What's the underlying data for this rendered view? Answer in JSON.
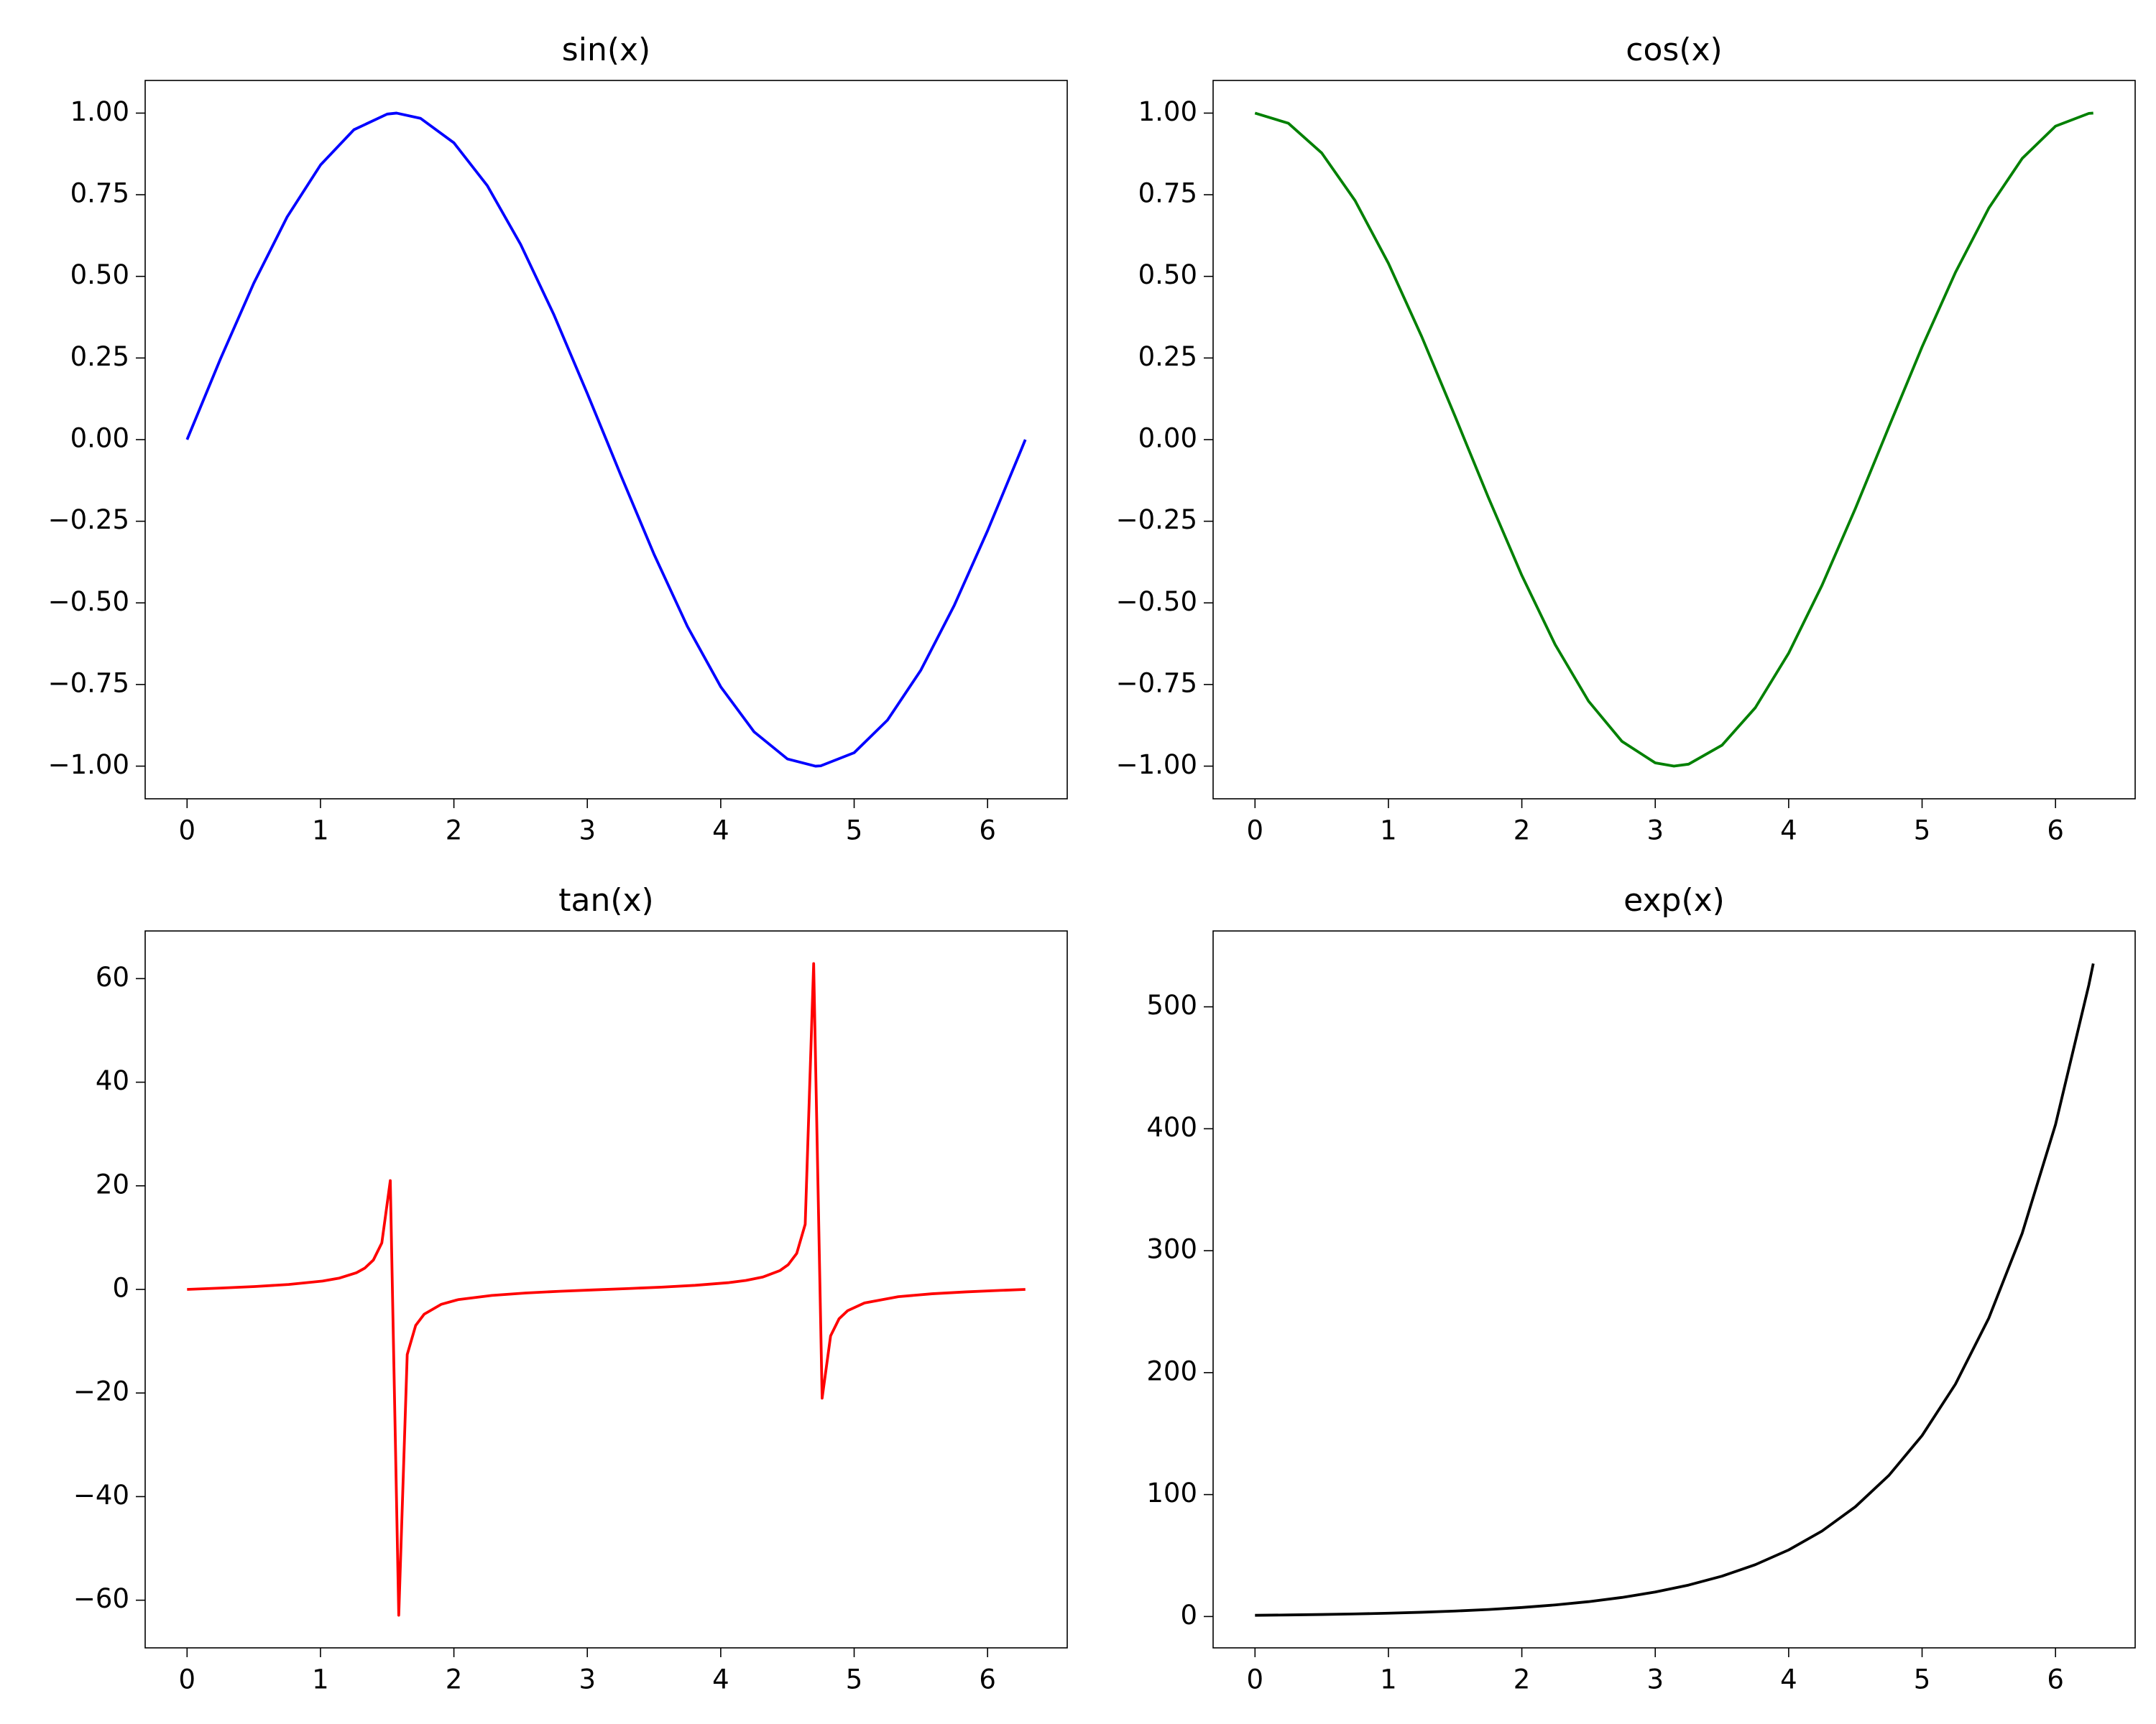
{
  "chart_data": [
    {
      "type": "line",
      "title": "sin(x)",
      "color": "#0000ff",
      "x": [
        0,
        0.25,
        0.5,
        0.75,
        1,
        1.25,
        1.5,
        1.57,
        1.75,
        2,
        2.25,
        2.5,
        2.75,
        3,
        3.14,
        3.25,
        3.5,
        3.75,
        4,
        4.25,
        4.5,
        4.71,
        4.75,
        5,
        5.25,
        5.5,
        5.75,
        6,
        6.25,
        6.283
      ],
      "values": [
        0,
        0.247,
        0.479,
        0.682,
        0.841,
        0.949,
        0.997,
        1.0,
        0.984,
        0.909,
        0.778,
        0.598,
        0.382,
        0.141,
        0.002,
        -0.108,
        -0.351,
        -0.572,
        -0.757,
        -0.895,
        -0.978,
        -1.0,
        -0.999,
        -0.959,
        -0.859,
        -0.706,
        -0.508,
        -0.279,
        -0.033,
        0
      ],
      "xlim": [
        -0.314,
        6.597
      ],
      "ylim": [
        -1.1,
        1.1
      ],
      "xticks": [
        0,
        1,
        2,
        3,
        4,
        5,
        6
      ],
      "yticks": [
        {
          "value": -1,
          "label": "−1.00"
        },
        {
          "value": -0.75,
          "label": "−0.75"
        },
        {
          "value": -0.5,
          "label": "−0.50"
        },
        {
          "value": -0.25,
          "label": "−0.25"
        },
        {
          "value": 0,
          "label": "0.00"
        },
        0.25,
        {
          "value": 0.5,
          "label": "0.50"
        },
        0.75,
        {
          "value": 1,
          "label": "1.00"
        }
      ]
    },
    {
      "type": "line",
      "title": "cos(x)",
      "color": "#008000",
      "x": [
        0,
        0.25,
        0.5,
        0.75,
        1,
        1.25,
        1.5,
        1.57,
        1.75,
        2,
        2.25,
        2.5,
        2.75,
        3,
        3.14,
        3.25,
        3.5,
        3.75,
        4,
        4.25,
        4.5,
        4.71,
        4.75,
        5,
        5.25,
        5.5,
        5.75,
        6,
        6.25,
        6.283
      ],
      "values": [
        1,
        0.969,
        0.878,
        0.732,
        0.54,
        0.315,
        0.071,
        0.001,
        -0.178,
        -0.416,
        -0.628,
        -0.801,
        -0.924,
        -0.99,
        -1.0,
        -0.994,
        -0.936,
        -0.821,
        -0.654,
        -0.446,
        -0.211,
        -0.002,
        0.038,
        0.284,
        0.512,
        0.709,
        0.861,
        0.96,
        0.999,
        1
      ],
      "xlim": [
        -0.314,
        6.597
      ],
      "ylim": [
        -1.1,
        1.1
      ],
      "xticks": [
        0,
        1,
        2,
        3,
        4,
        5,
        6
      ],
      "yticks": [
        {
          "value": -1,
          "label": "−1.00"
        },
        {
          "value": -0.75,
          "label": "−0.75"
        },
        {
          "value": -0.5,
          "label": "−0.50"
        },
        {
          "value": -0.25,
          "label": "−0.25"
        },
        {
          "value": 0,
          "label": "0.00"
        },
        0.25,
        {
          "value": 0.5,
          "label": "0.50"
        },
        0.75,
        {
          "value": 1,
          "label": "1.00"
        }
      ]
    },
    {
      "type": "line",
      "title": "tan(x)",
      "color": "#ff0000",
      "x": [
        0,
        0.2539,
        0.5077,
        0.7616,
        1.0155,
        1.1424,
        1.2693,
        1.3328,
        1.3963,
        1.4597,
        1.5232,
        1.5867,
        1.6501,
        1.7136,
        1.7771,
        1.904,
        2.0309,
        2.2848,
        2.5387,
        2.7925,
        3.0464,
        3.3003,
        3.5541,
        3.808,
        4.0619,
        4.1888,
        4.3158,
        4.4427,
        4.5061,
        4.5696,
        4.6331,
        4.6965,
        4.76,
        4.8235,
        4.8869,
        4.9504,
        5.0773,
        5.3312,
        5.5851,
        5.8389,
        6.0928,
        6.2832
      ],
      "values": [
        0,
        0.26,
        0.557,
        0.951,
        1.615,
        2.19,
        3.22,
        4.12,
        5.67,
        8.97,
        21.0,
        -62.9,
        -12.58,
        -6.95,
        -4.78,
        -2.89,
        -1.98,
        -1.16,
        -0.69,
        -0.364,
        -0.096,
        0.16,
        0.437,
        0.786,
        1.31,
        1.73,
        2.39,
        3.62,
        4.78,
        6.95,
        12.58,
        62.9,
        -21.0,
        -8.97,
        -5.67,
        -4.12,
        -2.62,
        -1.4,
        -0.839,
        -0.476,
        -0.193,
        0
      ],
      "xlim": [
        -0.314,
        6.597
      ],
      "ylim": [
        -69.2,
        69.2
      ],
      "xticks": [
        0,
        1,
        2,
        3,
        4,
        5,
        6
      ],
      "yticks": [
        {
          "value": -60,
          "label": "−60"
        },
        {
          "value": -40,
          "label": "−40"
        },
        {
          "value": -20,
          "label": "−20"
        },
        0,
        20,
        40,
        60
      ]
    },
    {
      "type": "line",
      "title": "exp(x)",
      "color": "#000000",
      "x": [
        0,
        0.25,
        0.5,
        0.75,
        1,
        1.25,
        1.5,
        1.75,
        2,
        2.25,
        2.5,
        2.75,
        3,
        3.25,
        3.5,
        3.75,
        4,
        4.25,
        4.5,
        4.75,
        5,
        5.25,
        5.5,
        5.75,
        6,
        6.25,
        6.283
      ],
      "values": [
        1,
        1.284,
        1.649,
        2.117,
        2.718,
        3.49,
        4.48,
        5.75,
        7.39,
        9.49,
        12.18,
        15.64,
        20.09,
        25.79,
        33.12,
        42.52,
        54.6,
        70.11,
        90.02,
        115.58,
        148.41,
        190.57,
        244.69,
        314.19,
        403.43,
        518.01,
        535.49
      ],
      "xlim": [
        -0.314,
        6.597
      ],
      "ylim": [
        -25.7,
        562.2
      ],
      "xticks": [
        0,
        1,
        2,
        3,
        4,
        5,
        6
      ],
      "yticks": [
        0,
        100,
        200,
        300,
        400,
        500
      ]
    }
  ]
}
